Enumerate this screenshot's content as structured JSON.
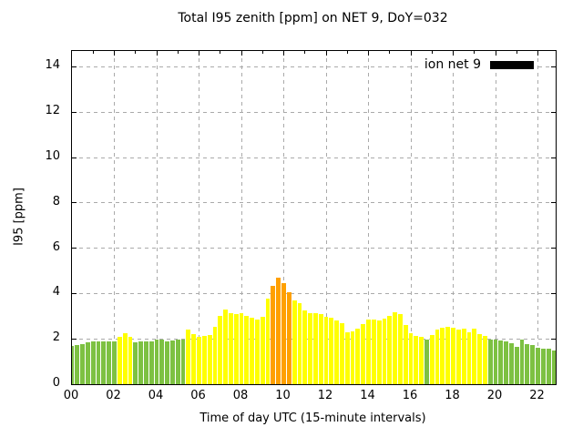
{
  "title": "Total I95 zenith [ppm] on NET 9, DoY=032",
  "chart_data": {
    "type": "bar",
    "title": "Total I95 zenith [ppm] on NET 9, DoY=032",
    "xlabel": "Time of day UTC (15-minute intervals)",
    "ylabel": "I95 [ppm]",
    "ylim": [
      0,
      14.7
    ],
    "y_ticks": [
      0,
      2,
      4,
      6,
      8,
      10,
      12,
      14
    ],
    "x_tick_hours": [
      0,
      2,
      4,
      6,
      8,
      10,
      12,
      14,
      16,
      18,
      20,
      22
    ],
    "x_tick_labels": [
      "00",
      "02",
      "04",
      "06",
      "08",
      "10",
      "12",
      "14",
      "16",
      "18",
      "20",
      "22"
    ],
    "xlim_hours": [
      0,
      22.84
    ],
    "x_minor_tick_every_hours": 1,
    "grid": true,
    "legend_position": "top-right-inside",
    "series_start_time": "00:00",
    "series_step_minutes": 15,
    "series": [
      {
        "name": "ion net 9",
        "values": [
          1.7,
          1.72,
          1.78,
          1.84,
          1.88,
          1.88,
          1.88,
          1.88,
          1.9,
          2.1,
          2.25,
          2.1,
          1.85,
          1.88,
          1.9,
          1.9,
          1.95,
          1.97,
          1.88,
          1.93,
          1.97,
          1.98,
          2.4,
          2.2,
          2.08,
          2.12,
          2.18,
          2.52,
          3.0,
          3.3,
          3.13,
          3.1,
          3.13,
          3.03,
          2.94,
          2.87,
          2.96,
          3.77,
          4.32,
          4.7,
          4.46,
          4.05,
          3.7,
          3.58,
          3.27,
          3.12,
          3.12,
          3.1,
          2.96,
          2.92,
          2.8,
          2.7,
          2.3,
          2.35,
          2.46,
          2.65,
          2.85,
          2.87,
          2.82,
          2.91,
          3.02,
          3.18,
          3.1,
          2.6,
          2.26,
          2.12,
          2.1,
          1.97,
          2.15,
          2.4,
          2.5,
          2.55,
          2.48,
          2.4,
          2.45,
          2.3,
          2.45,
          2.2,
          2.12,
          1.98,
          1.97,
          1.92,
          1.9,
          1.82,
          1.65,
          1.95,
          1.78,
          1.73,
          1.6,
          1.55,
          1.55,
          1.5
        ]
      }
    ],
    "bar_color_rule": {
      "green_when_below": 2.0,
      "orange_when_above": 4.0,
      "green": "#7DC142",
      "yellow": "#FFFF00",
      "orange": "#FFA000"
    },
    "legend_swatch_color": "#000000",
    "grid_color": "#AAAAAA"
  }
}
